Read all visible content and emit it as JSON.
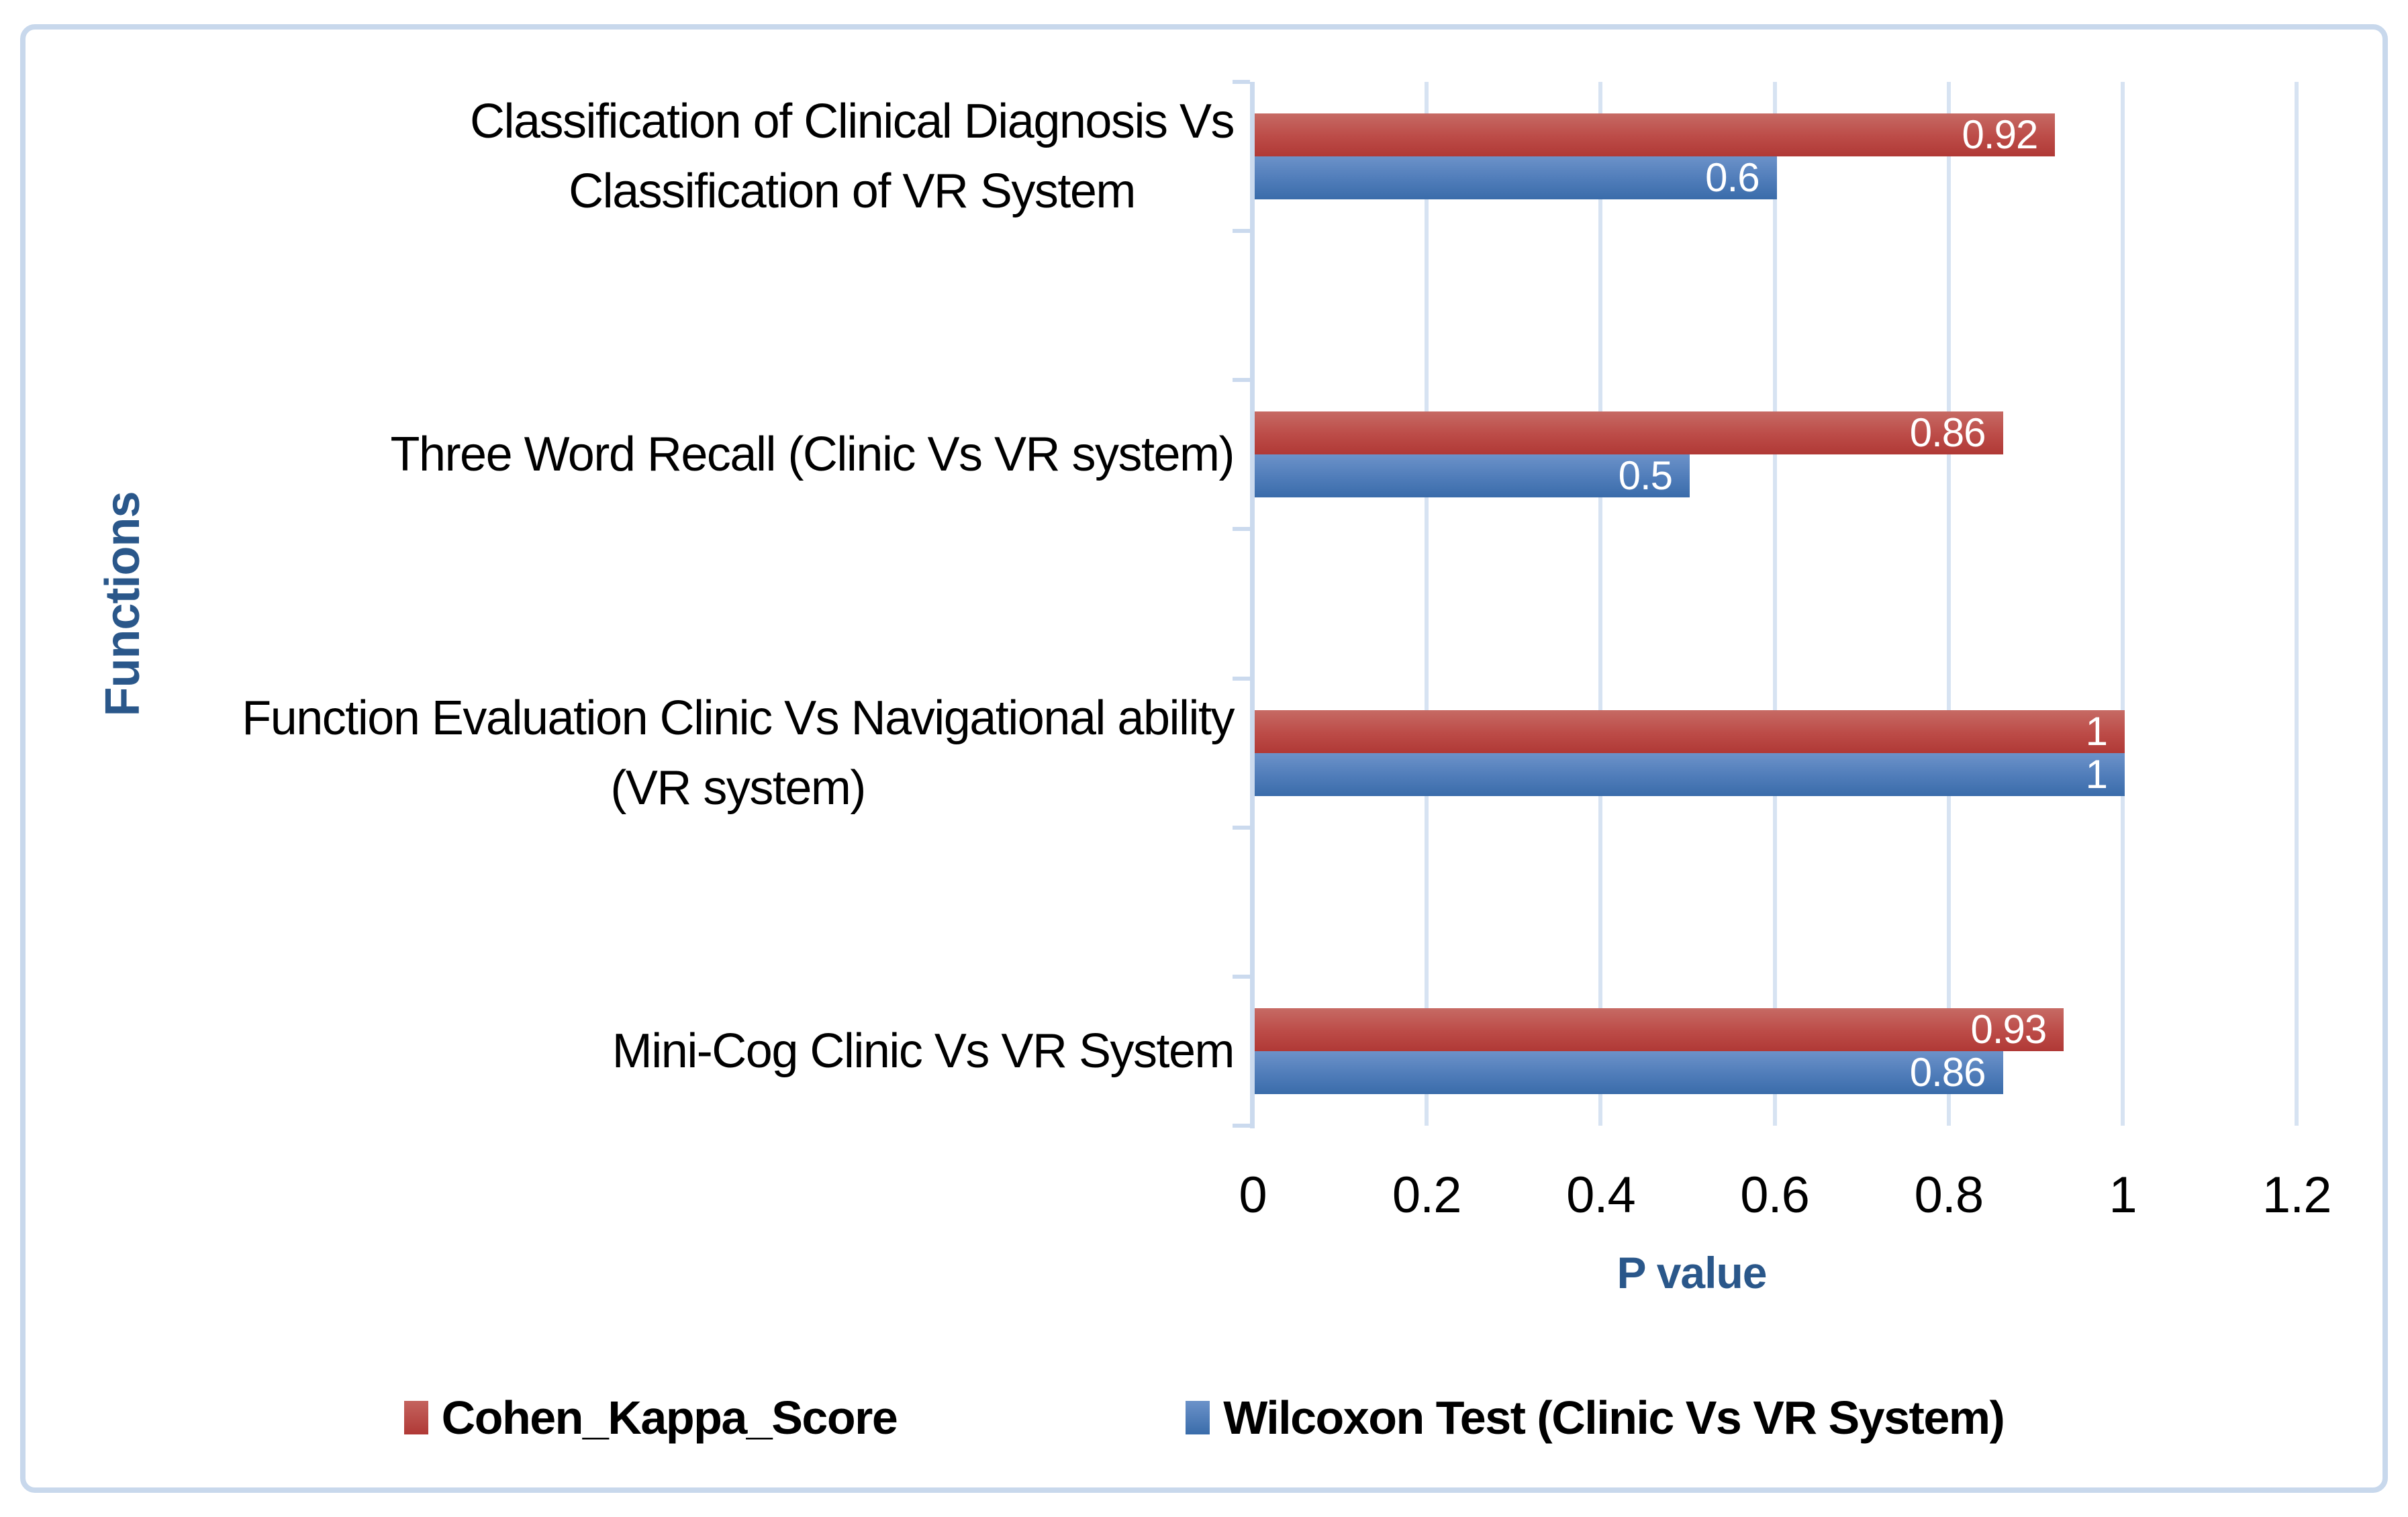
{
  "chart_data": {
    "type": "bar",
    "orientation": "horizontal",
    "title": "",
    "xlabel": "P value",
    "ylabel": "Functions",
    "xlim": [
      0,
      1.2
    ],
    "xticks": [
      "0",
      "0.2",
      "0.4",
      "0.6",
      "0.8",
      "1",
      "1.2"
    ],
    "xtick_values": [
      0,
      0.2,
      0.4,
      0.6,
      0.8,
      1,
      1.2
    ],
    "grid": true,
    "legend_position": "bottom",
    "categories": [
      "Classification of Clinical Diagnosis Vs Classification of VR System",
      "Three Word Recall (Clinic Vs VR system)",
      "Function Evaluation Clinic Vs Navigational ability (VR system)",
      "Mini-Cog Clinic Vs VR System"
    ],
    "category_lines": [
      [
        "Classification of Clinical Diagnosis Vs",
        "Classification of VR System"
      ],
      [
        "Three Word Recall (Clinic Vs VR system)"
      ],
      [
        "Function Evaluation Clinic Vs Navigational ability",
        "(VR system)"
      ],
      [
        "Mini-Cog Clinic Vs VR System"
      ]
    ],
    "series": [
      {
        "name": "Cohen_Kappa_Score",
        "color": "red",
        "values": [
          0.92,
          0.86,
          1,
          0.93
        ],
        "labels": [
          "0.92",
          "0.86",
          "1",
          "0.93"
        ]
      },
      {
        "name": "Wilcoxon Test (Clinic Vs VR System)",
        "color": "blue",
        "values": [
          0.6,
          0.5,
          1,
          0.86
        ],
        "labels": [
          "0.6",
          "0.5",
          "1",
          "0.86"
        ]
      }
    ],
    "colors": {
      "red_bar_top": "#C66A64",
      "red_bar_bottom": "#B03936",
      "blue_bar_top": "#6C92C9",
      "blue_bar_bottom": "#3A6CAA",
      "gridline": "#D7E3F2",
      "axis_line": "#CBDAEE",
      "chart_border": "#C8D8EC",
      "axis_title_text": "#2A578A",
      "tick_text": "#000000",
      "data_label_text": "#FFFFFF"
    }
  }
}
